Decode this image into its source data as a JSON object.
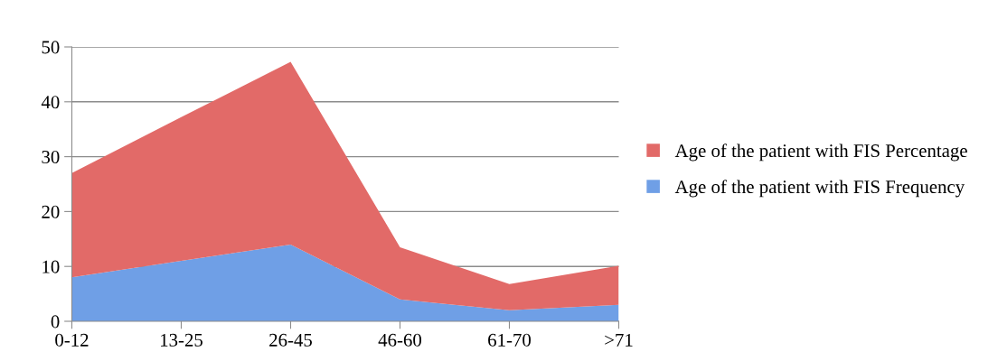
{
  "chart_data": {
    "type": "area",
    "stacked": true,
    "categories": [
      "0-12",
      "13-25",
      "26-45",
      "46-60",
      "61-70",
      ">71"
    ],
    "series": [
      {
        "name": "Age of the patient with FIS Frequency",
        "color": "#6f9fe6",
        "values": [
          8,
          11,
          14,
          4,
          2,
          3
        ]
      },
      {
        "name": "Age of the patient with FIS Percentage",
        "color": "#e26a68",
        "values": [
          19,
          26.2,
          33.3,
          9.5,
          4.8,
          7.1
        ]
      }
    ],
    "ylim": [
      0,
      50
    ],
    "yticks": [
      0,
      10,
      20,
      30,
      40,
      50
    ],
    "grid": "y",
    "legend": "right"
  }
}
